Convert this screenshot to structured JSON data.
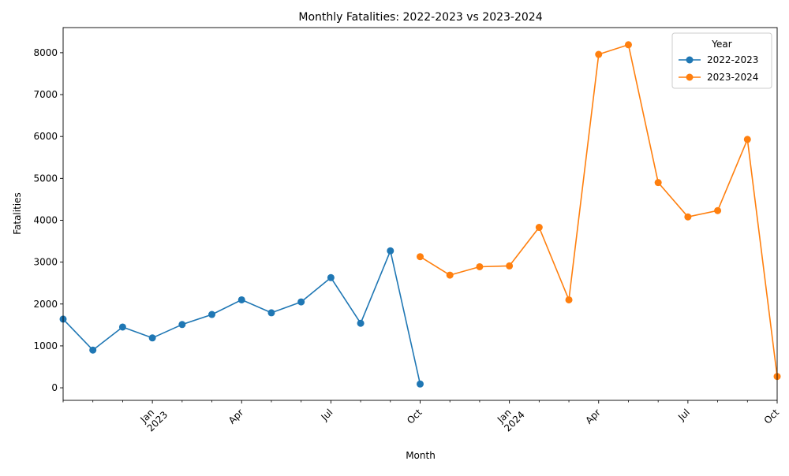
{
  "chart_data": {
    "type": "line",
    "title": "Monthly Fatalities: 2022-2023 vs 2023-2024",
    "xlabel": "Month",
    "ylabel": "Fatalities",
    "ylim": [
      -300,
      8600
    ],
    "xlim": [
      "2022-10",
      "2024-10"
    ],
    "y_ticks": [
      0,
      1000,
      2000,
      3000,
      4000,
      5000,
      6000,
      7000,
      8000
    ],
    "x_major_ticks": [
      {
        "month": "2023-01",
        "label": "Jan",
        "label2": "2023"
      },
      {
        "month": "2023-04",
        "label": "Apr",
        "label2": ""
      },
      {
        "month": "2023-07",
        "label": "Jul",
        "label2": ""
      },
      {
        "month": "2023-10",
        "label": "Oct",
        "label2": ""
      },
      {
        "month": "2024-01",
        "label": "Jan",
        "label2": "2024"
      },
      {
        "month": "2024-04",
        "label": "Apr",
        "label2": ""
      },
      {
        "month": "2024-07",
        "label": "Jul",
        "label2": ""
      },
      {
        "month": "2024-10",
        "label": "Oct",
        "label2": ""
      }
    ],
    "grid": false,
    "legend": {
      "title": "Year",
      "placement": "top-right"
    },
    "series": [
      {
        "name": "2022-2023",
        "color": "#1f77b4",
        "x": [
          "2022-10",
          "2022-11",
          "2022-12",
          "2023-01",
          "2023-02",
          "2023-03",
          "2023-04",
          "2023-05",
          "2023-06",
          "2023-07",
          "2023-08",
          "2023-09",
          "2023-10"
        ],
        "values": [
          1640,
          900,
          1450,
          1190,
          1510,
          1750,
          2100,
          1790,
          2050,
          2630,
          1540,
          3270,
          90
        ]
      },
      {
        "name": "2023-2024",
        "color": "#ff7f0e",
        "x": [
          "2023-10",
          "2023-11",
          "2023-12",
          "2024-01",
          "2024-02",
          "2024-03",
          "2024-04",
          "2024-05",
          "2024-06",
          "2024-07",
          "2024-08",
          "2024-09",
          "2024-10"
        ],
        "values": [
          3130,
          2690,
          2890,
          2910,
          3830,
          2100,
          7960,
          8190,
          4900,
          4080,
          4230,
          5930,
          270
        ]
      }
    ]
  }
}
